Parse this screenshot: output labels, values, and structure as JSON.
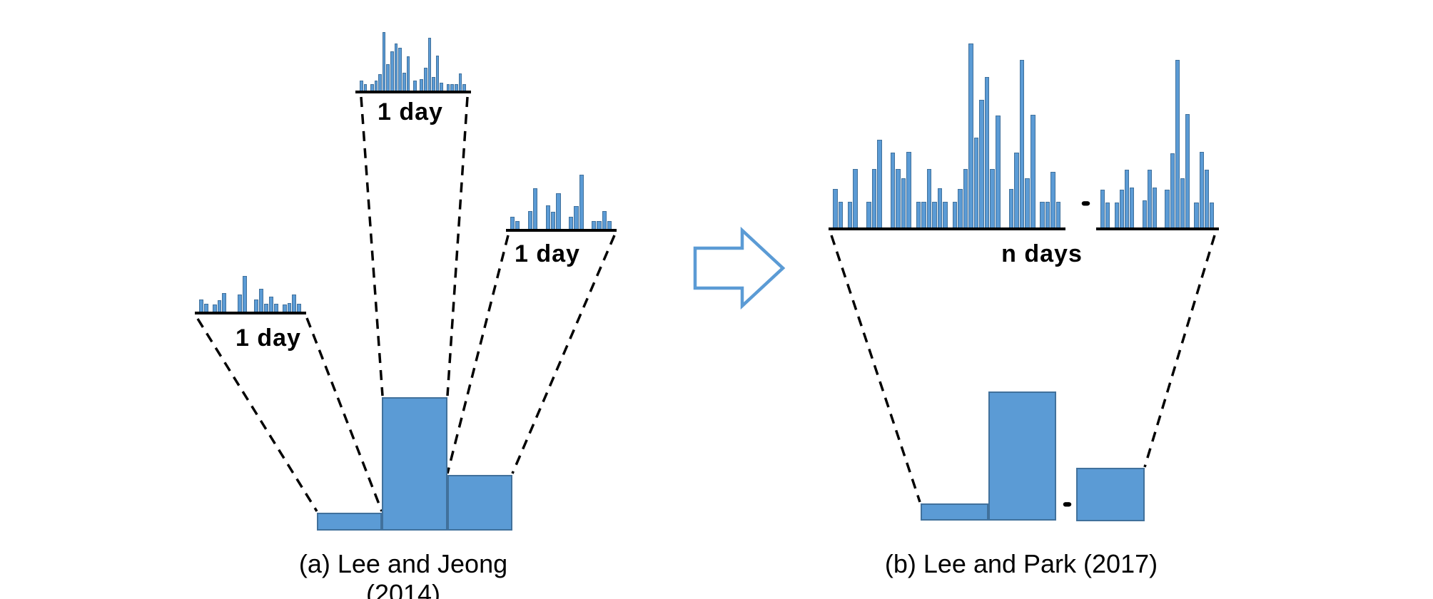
{
  "figure": {
    "colors": {
      "bar_fill": "#5b9bd5",
      "bar_border": "#41719c",
      "arrow_outline": "#5b9bd5",
      "line_color": "#000000"
    },
    "panel_a": {
      "caption": "(a) Lee and Jeong (2014)",
      "histograms": {
        "left": {
          "label": "1 day",
          "heights": [
            17,
            11,
            0,
            10,
            16,
            26,
            0,
            0,
            0,
            24,
            50,
            0,
            0,
            17,
            32,
            11,
            21,
            11,
            0,
            10,
            12,
            24,
            11
          ]
        },
        "top": {
          "label": "1 day",
          "heights": [
            14,
            9,
            0,
            9,
            14,
            23,
            82,
            37,
            55,
            66,
            60,
            25,
            48,
            0,
            14,
            0,
            16,
            32,
            74,
            19,
            49,
            11,
            0,
            9,
            9,
            9,
            24,
            9
          ]
        },
        "right": {
          "label": "1 day",
          "heights": [
            17,
            11,
            0,
            0,
            25,
            57,
            0,
            0,
            33,
            24,
            50,
            0,
            0,
            17,
            32,
            76,
            0,
            0,
            11,
            11,
            25,
            11
          ]
        }
      },
      "aggregate": {
        "heights": [
          25,
          187,
          78
        ]
      }
    },
    "panel_b": {
      "caption": "(b) Lee and Park (2017)",
      "label": "n days",
      "ellipsis_top": "•••",
      "ellipsis_bottom": "•••",
      "histograms": {
        "left": {
          "heights": [
            54,
            36,
            0,
            36,
            82,
            0,
            0,
            36,
            82,
            123,
            0,
            0,
            105,
            82,
            69,
            106,
            0,
            36,
            36,
            82,
            36,
            55,
            36,
            0,
            36,
            54,
            82,
            258,
            126,
            179,
            211,
            82,
            157,
            0,
            0,
            54,
            105,
            235,
            69,
            158,
            0,
            36,
            36,
            78,
            36
          ]
        },
        "right": {
          "heights": [
            53,
            35,
            0,
            35,
            53,
            81,
            56,
            0,
            0,
            38,
            81,
            56,
            0,
            0,
            53,
            104,
            235,
            69,
            159,
            0,
            35,
            106,
            81,
            35
          ]
        }
      },
      "aggregate": {
        "left_heights": [
          24,
          181
        ],
        "right_heights": [
          75
        ]
      }
    }
  }
}
